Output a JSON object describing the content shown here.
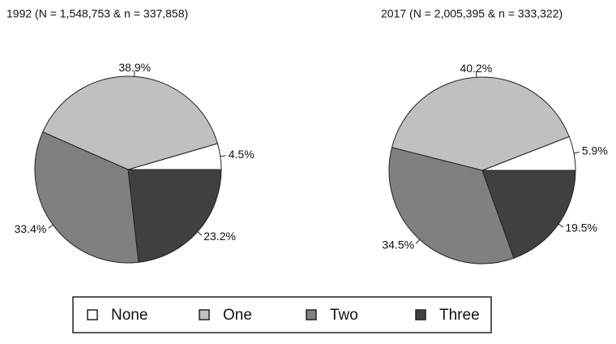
{
  "chart_data": [
    {
      "type": "pie",
      "title": "1992 (N = 1,548,753 & n = 337,858)",
      "categories": [
        "None",
        "One",
        "Two",
        "Three"
      ],
      "values": [
        4.5,
        38.9,
        33.4,
        23.2
      ],
      "value_labels": [
        "4.5%",
        "38.9%",
        "33.4%",
        "23.2%"
      ],
      "colors": [
        "#ffffff",
        "#c0c0c0",
        "#808080",
        "#404040"
      ]
    },
    {
      "type": "pie",
      "title": "2017 (N = 2,005,395 & n = 333,322)",
      "categories": [
        "None",
        "One",
        "Two",
        "Three"
      ],
      "values": [
        5.9,
        40.2,
        34.5,
        19.5
      ],
      "value_labels": [
        "5.9%",
        "40.2%",
        "34.5%",
        "19.5%"
      ],
      "colors": [
        "#ffffff",
        "#c0c0c0",
        "#808080",
        "#404040"
      ]
    }
  ]
}
